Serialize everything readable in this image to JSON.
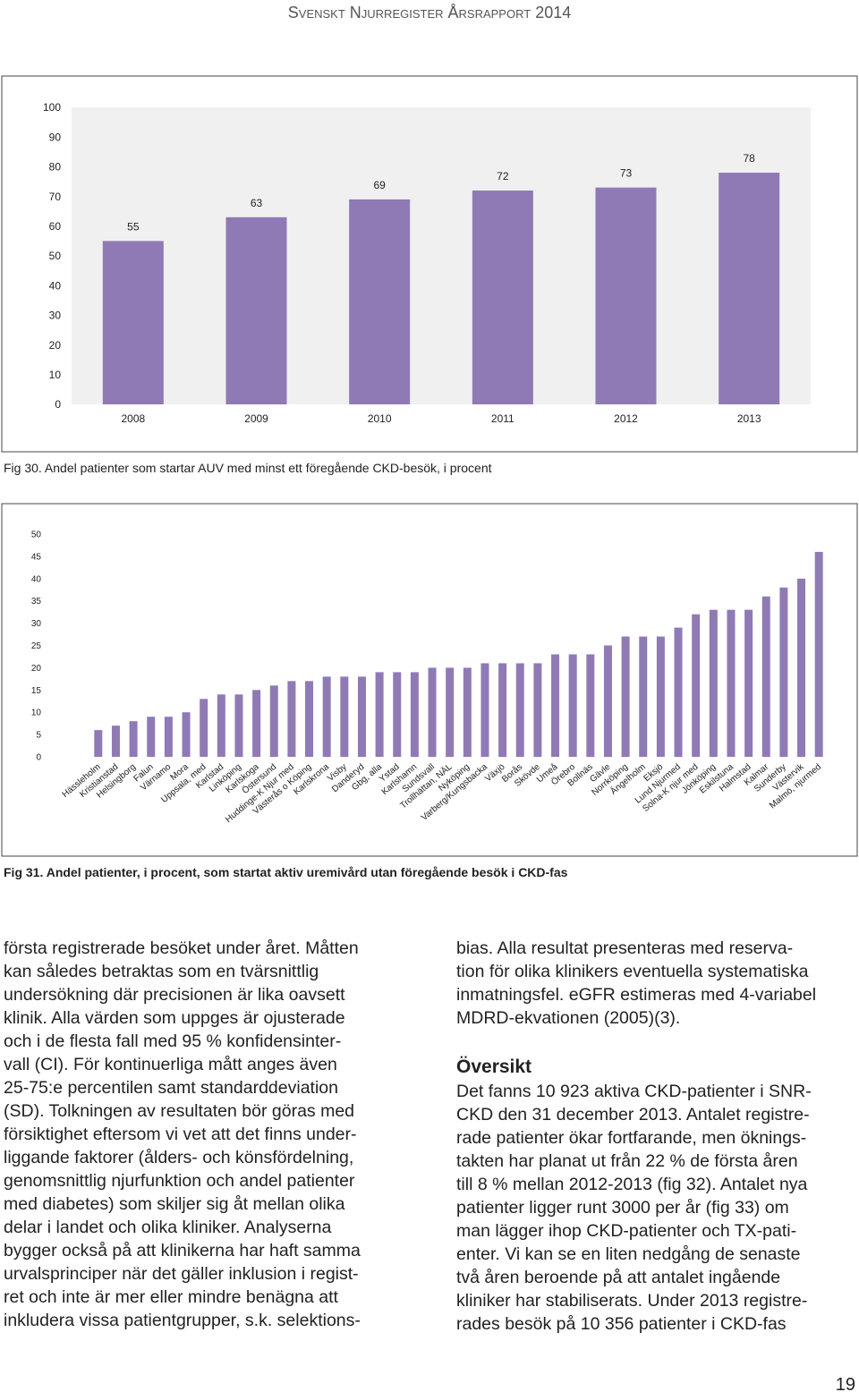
{
  "header": "Svenskt Njurregister Årsrapport 2014",
  "chart_data": [
    {
      "type": "bar",
      "categories": [
        "2008",
        "2009",
        "2010",
        "2011",
        "2012",
        "2013"
      ],
      "values": [
        55,
        63,
        69,
        72,
        73,
        78
      ],
      "color": "#8f7ab5",
      "data_labels": true,
      "ylim": [
        0,
        100
      ],
      "yticks": [
        0,
        10,
        20,
        30,
        40,
        50,
        60,
        70,
        80,
        90,
        100
      ],
      "grid": false
    },
    {
      "type": "bar",
      "categories": [
        "Hässleholm",
        "Kristianstad",
        "Helsingborg",
        "Falun",
        "Värnamo",
        "Mora",
        "Uppsala, med",
        "Karlstad",
        "Linköping",
        "Karlskoga",
        "Östersund",
        "Huddinge-K Njur med",
        "Västerås o Köping",
        "Karlskrona",
        "Visby",
        "Danderyd",
        "Gbg, alla",
        "Ystad",
        "Karlshamn",
        "Sundsvall",
        "Trollhättan, NÄL",
        "Nyköping",
        "Varberg/Kungsbacka",
        "Växjö",
        "Borås",
        "Skövde",
        "Umeå",
        "Örebro",
        "Bollnäs",
        "Gävle",
        "Norrköping",
        "Ängelholm",
        "Eksjö",
        "Lund Njurmed",
        "Solna-K njur med",
        "Jönköping",
        "Eskilstuna",
        "Halmstad",
        "Kalmar",
        "Sunderby",
        "Västervik",
        "Malmö, njurmed"
      ],
      "values": [
        6,
        7,
        8,
        9,
        9,
        10,
        13,
        14,
        14,
        15,
        16,
        17,
        17,
        18,
        18,
        18,
        19,
        19,
        19,
        20,
        20,
        20,
        21,
        21,
        21,
        21,
        23,
        23,
        23,
        25,
        27,
        27,
        27,
        29,
        32,
        33,
        33,
        33,
        36,
        38,
        40,
        46
      ],
      "color": "#8f7ab5",
      "data_labels": false,
      "ylim": [
        0,
        50
      ],
      "yticks": [
        0,
        5,
        10,
        15,
        20,
        25,
        30,
        35,
        40,
        45,
        50
      ],
      "grid": false
    }
  ],
  "figure_captions": [
    "Fig 30.  Andel patienter som startar AUV med minst ett föregående CKD-besök, i procent",
    "Fig 31.  Andel patienter, i procent, som startat aktiv uremivård utan föregående besök i CKD-fas"
  ],
  "body": {
    "left_column": [
      "första registrerade besöket under året. Måtten",
      "kan således betraktas som en tvärsnittlig",
      "undersökning där precisionen är lika oavsett",
      "klinik. Alla värden som uppges är ojusterade",
      "och i de flesta fall med 95 % konfidensinter-",
      "vall (CI). För kontinuerliga mått anges även",
      "25-75:e percentilen samt standarddeviation",
      "(SD). Tolkningen av resultaten bör göras med",
      "försiktighet eftersom vi vet att det finns under-",
      "liggande faktorer (ålders- och könsfördelning,",
      "genomsnittlig njurfunktion och andel patienter",
      "med diabetes) som skiljer sig åt mellan olika",
      "delar i landet och olika kliniker. Analyserna",
      "bygger också på att klinikerna har haft samma",
      "urvalsprinciper när det gäller inklusion i regist-",
      "ret och inte är mer eller mindre benägna att",
      "inkludera vissa patientgrupper, s.k. selektions-"
    ],
    "right_column_top": [
      "bias. Alla resultat presenteras med reserva-",
      "tion för olika klinikers eventuella systematiska",
      "inmatningsfel. eGFR estimeras med 4-variabel",
      "MDRD-ekvationen (2005)(3)."
    ],
    "heading": "Översikt",
    "right_column_bottom": [
      "Det fanns 10 923 aktiva CKD-patienter i SNR-",
      "CKD den 31 december 2013. Antalet registre-",
      "rade patienter ökar fortfarande, men öknings-",
      "takten har planat ut från 22 % de första åren",
      "till 8 % mellan 2012-2013 (fig 32). Antalet nya",
      "patienter ligger runt 3000 per år (fig 33) om",
      "man lägger ihop CKD-patienter och TX-pati-",
      "enter.  Vi kan se en liten nedgång de senaste",
      "två åren beroende på att antalet ingående",
      "kliniker har stabiliserats. Under 2013 registre-",
      "rades besök på 10 356 patienter i CKD-fas"
    ]
  },
  "page_number": "19"
}
